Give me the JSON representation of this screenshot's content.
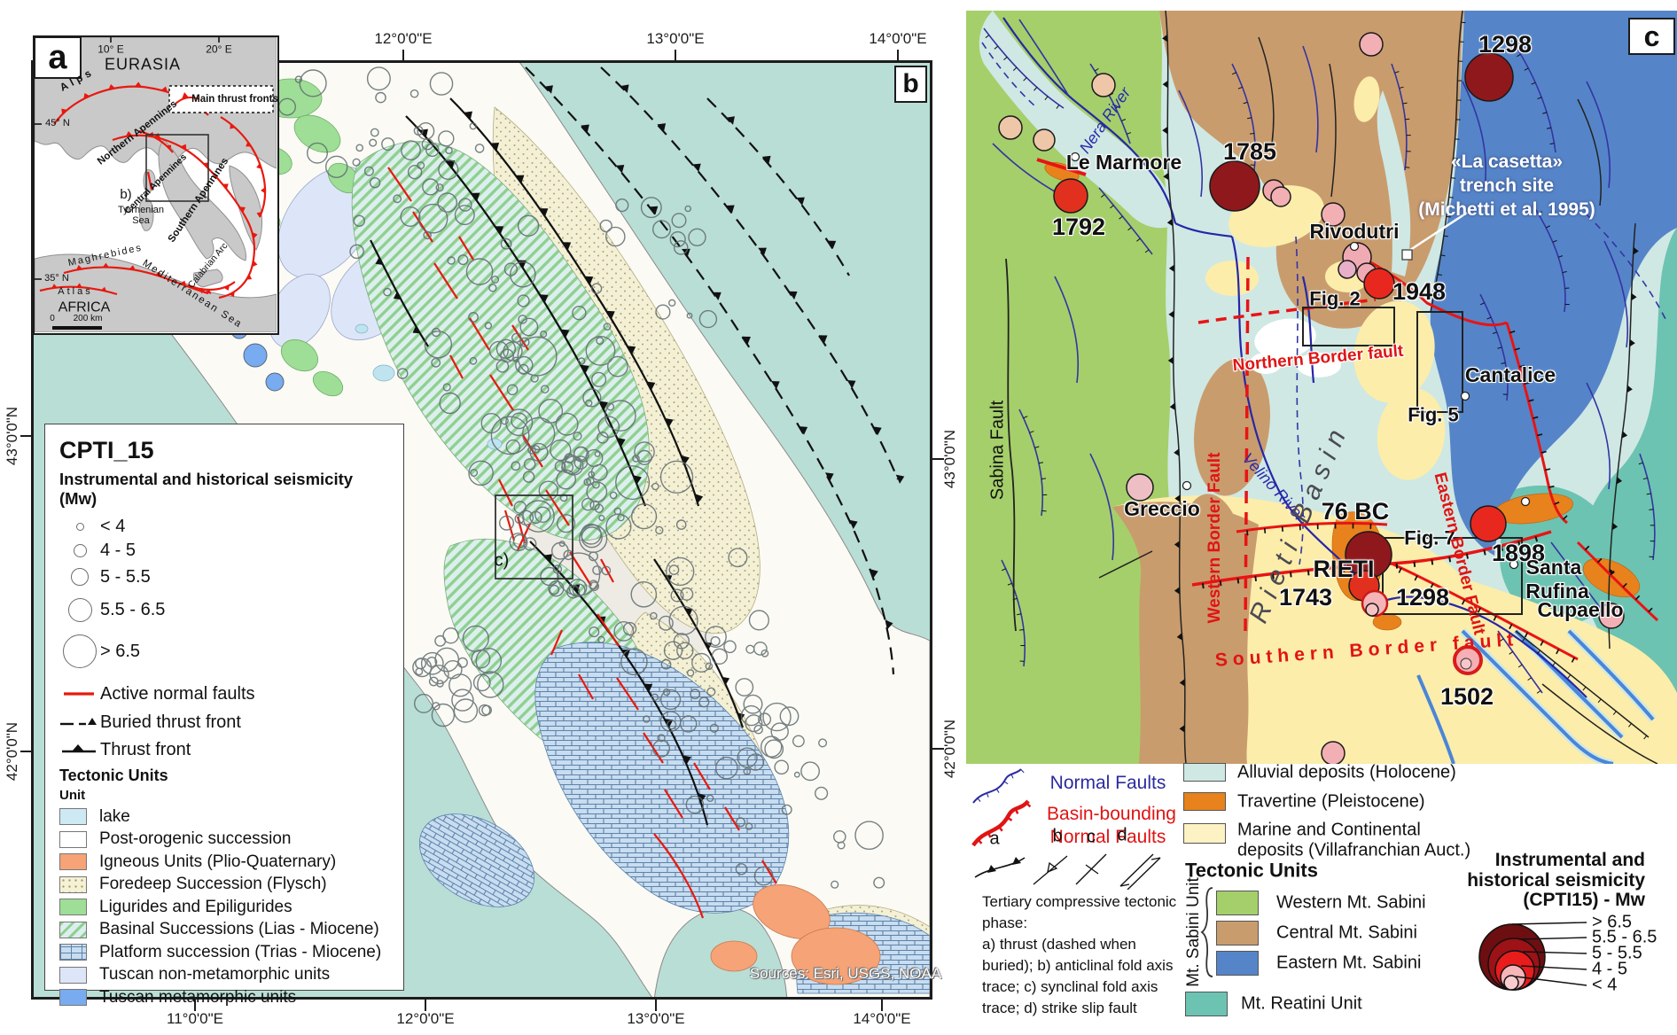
{
  "figure": {
    "panel_a_tag": "a",
    "panel_b_tag": "b",
    "panel_c_tag": "c"
  },
  "panel_a": {
    "lon_left": "10° E",
    "lon_right": "20° E",
    "eurasia": "EURASIA",
    "africa": "AFRICA",
    "alps": "Alps",
    "lat_45": "45° N",
    "lat_35": "35° N",
    "thrust_box_label": "Main thrust fronts",
    "northern_apennines": "Northern Apennines",
    "central_apennines": "Central Apennines",
    "southern_apennines": "Southern Apennines",
    "b_extent_label": "b)",
    "tyrrhenian_1": "Tyrrhenian",
    "tyrrhenian_2": "Sea",
    "mediterranean": "Mediterranean Sea",
    "maghrebides": "Maghrebides",
    "calabrian_arc": "Calabrian Arc",
    "atlas": "Atlas",
    "scale_zero": "0",
    "scale_label": "200 km"
  },
  "panel_b": {
    "axis_top": [
      "12°0'0\"E",
      "13°0'0\"E",
      "14°0'0\"E"
    ],
    "axis_bottom": [
      "11°0'0\"E",
      "12°0'0\"E",
      "13°0'0\"E",
      "14°0'0\"E"
    ],
    "axis_left": [
      "43°0'0\"N",
      "42°0'0\"N"
    ],
    "axis_right": [
      "43°0'0\"N",
      "42°0'0\"N"
    ],
    "c_extent_label": "c)",
    "sources": "Sources: Esri, USGS, NOAA",
    "legend": {
      "title": "CPTI_15",
      "subtitle": "Instrumental and historical seismicity (Mw)",
      "size_classes": [
        "< 4",
        "4 - 5",
        "5 - 5.5",
        "5.5 - 6.5",
        "> 6.5"
      ],
      "active_normal_faults": "Active normal faults",
      "buried_thrust_front": "Buried thrust front",
      "thrust_front": "Thrust front",
      "tectonic_title": "Tectonic Units",
      "unit_label": "Unit",
      "units": [
        {
          "label": "lake",
          "color": "#cdeaf4"
        },
        {
          "label": "Post-orogenic succession",
          "color": "#ffffff"
        },
        {
          "label": "Igneous Units (Plio-Quaternary)",
          "color": "#f5a377"
        },
        {
          "label": "Foredeep Succession (Flysch)",
          "color": "#f5f1d5"
        },
        {
          "label": "Ligurides and Epiligurides",
          "color": "#9ede96"
        },
        {
          "label": "Basinal Successions (Lias - Miocene)",
          "color": "#ddeeee"
        },
        {
          "label": "Platform succession (Trias - Miocene)",
          "color": "#c8ddf0"
        },
        {
          "label": "Tuscan non-metamorphic units",
          "color": "#dde6f8"
        },
        {
          "label": "Tuscan metamorphic units",
          "color": "#78abf0"
        }
      ]
    }
  },
  "panel_c": {
    "quakes": {
      "y1298_north": "1298",
      "y1785": "1785",
      "y1792": "1792",
      "y1948": "1948",
      "y76bc": "76 BC",
      "rieti": "RIETI",
      "y1743": "1743",
      "y1298_rieti": "1298",
      "y1898": "1898",
      "y1502": "1502"
    },
    "places": {
      "le_marmore": "Le Marmore",
      "rivodutri": "Rivodutri",
      "cantalice": "Cantalice",
      "greccio": "Greccio",
      "cupaello": "Cupaello",
      "santa": "Santa",
      "rufina": "Rufina"
    },
    "trench": [
      "«La casetta»",
      "trench site",
      "(Michetti et al. 1995)"
    ],
    "figs": {
      "fig2": "Fig. 2",
      "fig5": "Fig. 5",
      "fig7": "Fig. 7"
    },
    "faults": {
      "northern": "Northern Border fault",
      "western": "Western Border Fault",
      "eastern": "Eastern Border Fault",
      "southern": "Southern Border fault",
      "sabina": "Sabina Fault"
    },
    "rivers": {
      "nera": "Nera River",
      "velino": "Velino River"
    },
    "basin": "Rieti Basin",
    "legend": {
      "normal_faults": "Normal Faults",
      "basin_bounding_1": "Basin-bounding",
      "basin_bounding_2": "Normal Faults",
      "symbols": [
        "a",
        "b",
        "c",
        "d"
      ],
      "phase_lines": [
        "Tertiary compressive tectonic",
        "phase:",
        "a) thrust (dashed when",
        "buried); b) anticlinal fold axis",
        "trace; c) synclinal fold axis",
        "trace; d) strike slip fault"
      ],
      "deposits": [
        "Alluvial deposits (Holocene)",
        "Travertine (Pleistocene)",
        "Marine and Continental",
        "deposits (Villafranchian Auct.)"
      ],
      "tectonic_title": "Tectonic Units",
      "sabini_unit": "Mt. Sabini Unit",
      "sabini": [
        "Western Mt. Sabini",
        "Central Mt. Sabini",
        "Eastern Mt. Sabini"
      ],
      "reatini": "Mt. Reatini Unit",
      "seis_title": [
        "Instrumental and",
        "historical seismicity",
        "(CPTI15) - Mw"
      ],
      "mw_classes": [
        "> 6.5",
        "5.5 - 6.5",
        "5 - 5.5",
        "4 - 5",
        "< 4"
      ]
    },
    "colors": {
      "western_sabini": "#a5cf6a",
      "central_sabini": "#c99c6d",
      "eastern_sabini": "#5585c8",
      "reatini": "#6cc3b1",
      "alluvial": "#cfe8e4",
      "travertine": "#e8821c",
      "marine": "#fdf2c4",
      "normal_fault_blue": "#3434a4",
      "basin_fault_red": "#e81414",
      "mw_gt65": "#6d0e11",
      "mw_55_65": "#9c1216",
      "mw_5_55": "#e81c1c",
      "mw_4_5": "#f5b5b9",
      "mw_lt4": "#f9cdd0"
    }
  }
}
